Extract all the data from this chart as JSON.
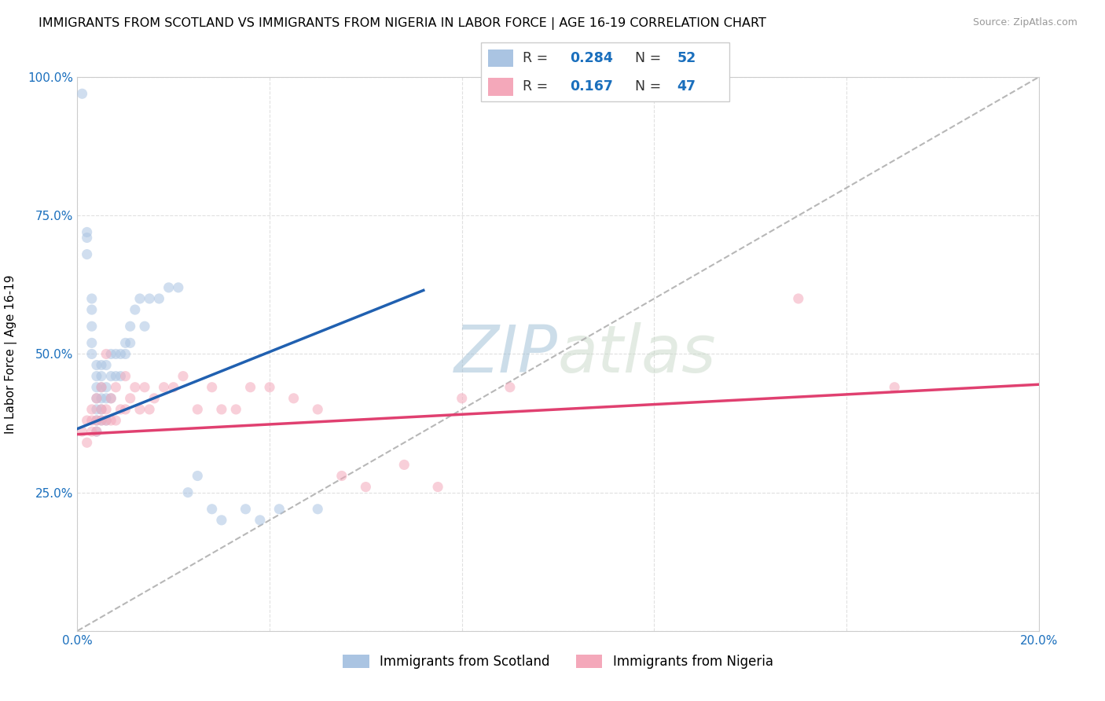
{
  "title": "IMMIGRANTS FROM SCOTLAND VS IMMIGRANTS FROM NIGERIA IN LABOR FORCE | AGE 16-19 CORRELATION CHART",
  "source": "Source: ZipAtlas.com",
  "ylabel": "In Labor Force | Age 16-19",
  "xlim": [
    0.0,
    0.2
  ],
  "ylim": [
    0.0,
    1.0
  ],
  "xticks": [
    0.0,
    0.04,
    0.08,
    0.12,
    0.16,
    0.2
  ],
  "yticks": [
    0.0,
    0.25,
    0.5,
    0.75,
    1.0
  ],
  "scotland_R": 0.284,
  "scotland_N": 52,
  "nigeria_R": 0.167,
  "nigeria_N": 47,
  "scotland_color": "#aac4e2",
  "nigeria_color": "#f4a8ba",
  "scotland_line_color": "#2060b0",
  "nigeria_line_color": "#e04070",
  "scatter_alpha": 0.55,
  "marker_size": 90,
  "background_color": "#ffffff",
  "grid_color": "#cccccc",
  "title_fontsize": 11.5,
  "axis_label_fontsize": 11,
  "tick_fontsize": 11,
  "watermark_color": "#ccdaeb",
  "watermark_fontsize": 60,
  "scotland_x": [
    0.001,
    0.002,
    0.002,
    0.002,
    0.003,
    0.003,
    0.003,
    0.003,
    0.003,
    0.004,
    0.004,
    0.004,
    0.004,
    0.004,
    0.004,
    0.004,
    0.005,
    0.005,
    0.005,
    0.005,
    0.005,
    0.005,
    0.006,
    0.006,
    0.006,
    0.006,
    0.007,
    0.007,
    0.007,
    0.008,
    0.008,
    0.009,
    0.009,
    0.01,
    0.01,
    0.011,
    0.011,
    0.012,
    0.013,
    0.014,
    0.015,
    0.017,
    0.019,
    0.021,
    0.023,
    0.025,
    0.028,
    0.03,
    0.035,
    0.038,
    0.042,
    0.05
  ],
  "scotland_y": [
    0.97,
    0.72,
    0.71,
    0.68,
    0.6,
    0.58,
    0.55,
    0.52,
    0.5,
    0.48,
    0.46,
    0.44,
    0.42,
    0.4,
    0.38,
    0.36,
    0.48,
    0.46,
    0.44,
    0.42,
    0.4,
    0.38,
    0.48,
    0.44,
    0.42,
    0.38,
    0.5,
    0.46,
    0.42,
    0.5,
    0.46,
    0.5,
    0.46,
    0.52,
    0.5,
    0.55,
    0.52,
    0.58,
    0.6,
    0.55,
    0.6,
    0.6,
    0.62,
    0.62,
    0.25,
    0.28,
    0.22,
    0.2,
    0.22,
    0.2,
    0.22,
    0.22
  ],
  "nigeria_x": [
    0.001,
    0.002,
    0.002,
    0.003,
    0.003,
    0.003,
    0.004,
    0.004,
    0.004,
    0.005,
    0.005,
    0.005,
    0.006,
    0.006,
    0.006,
    0.007,
    0.007,
    0.008,
    0.008,
    0.009,
    0.01,
    0.01,
    0.011,
    0.012,
    0.013,
    0.014,
    0.015,
    0.016,
    0.018,
    0.02,
    0.022,
    0.025,
    0.028,
    0.03,
    0.033,
    0.036,
    0.04,
    0.045,
    0.05,
    0.055,
    0.06,
    0.068,
    0.075,
    0.08,
    0.09,
    0.15,
    0.17
  ],
  "nigeria_y": [
    0.36,
    0.34,
    0.38,
    0.36,
    0.38,
    0.4,
    0.36,
    0.38,
    0.42,
    0.38,
    0.4,
    0.44,
    0.38,
    0.4,
    0.5,
    0.38,
    0.42,
    0.38,
    0.44,
    0.4,
    0.4,
    0.46,
    0.42,
    0.44,
    0.4,
    0.44,
    0.4,
    0.42,
    0.44,
    0.44,
    0.46,
    0.4,
    0.44,
    0.4,
    0.4,
    0.44,
    0.44,
    0.42,
    0.4,
    0.28,
    0.26,
    0.3,
    0.26,
    0.42,
    0.44,
    0.6,
    0.44
  ],
  "sc_trend_x0": 0.0,
  "sc_trend_x1": 0.072,
  "sc_trend_y0": 0.365,
  "sc_trend_y1": 0.615,
  "ng_trend_x0": 0.0,
  "ng_trend_x1": 0.2,
  "ng_trend_y0": 0.355,
  "ng_trend_y1": 0.445
}
